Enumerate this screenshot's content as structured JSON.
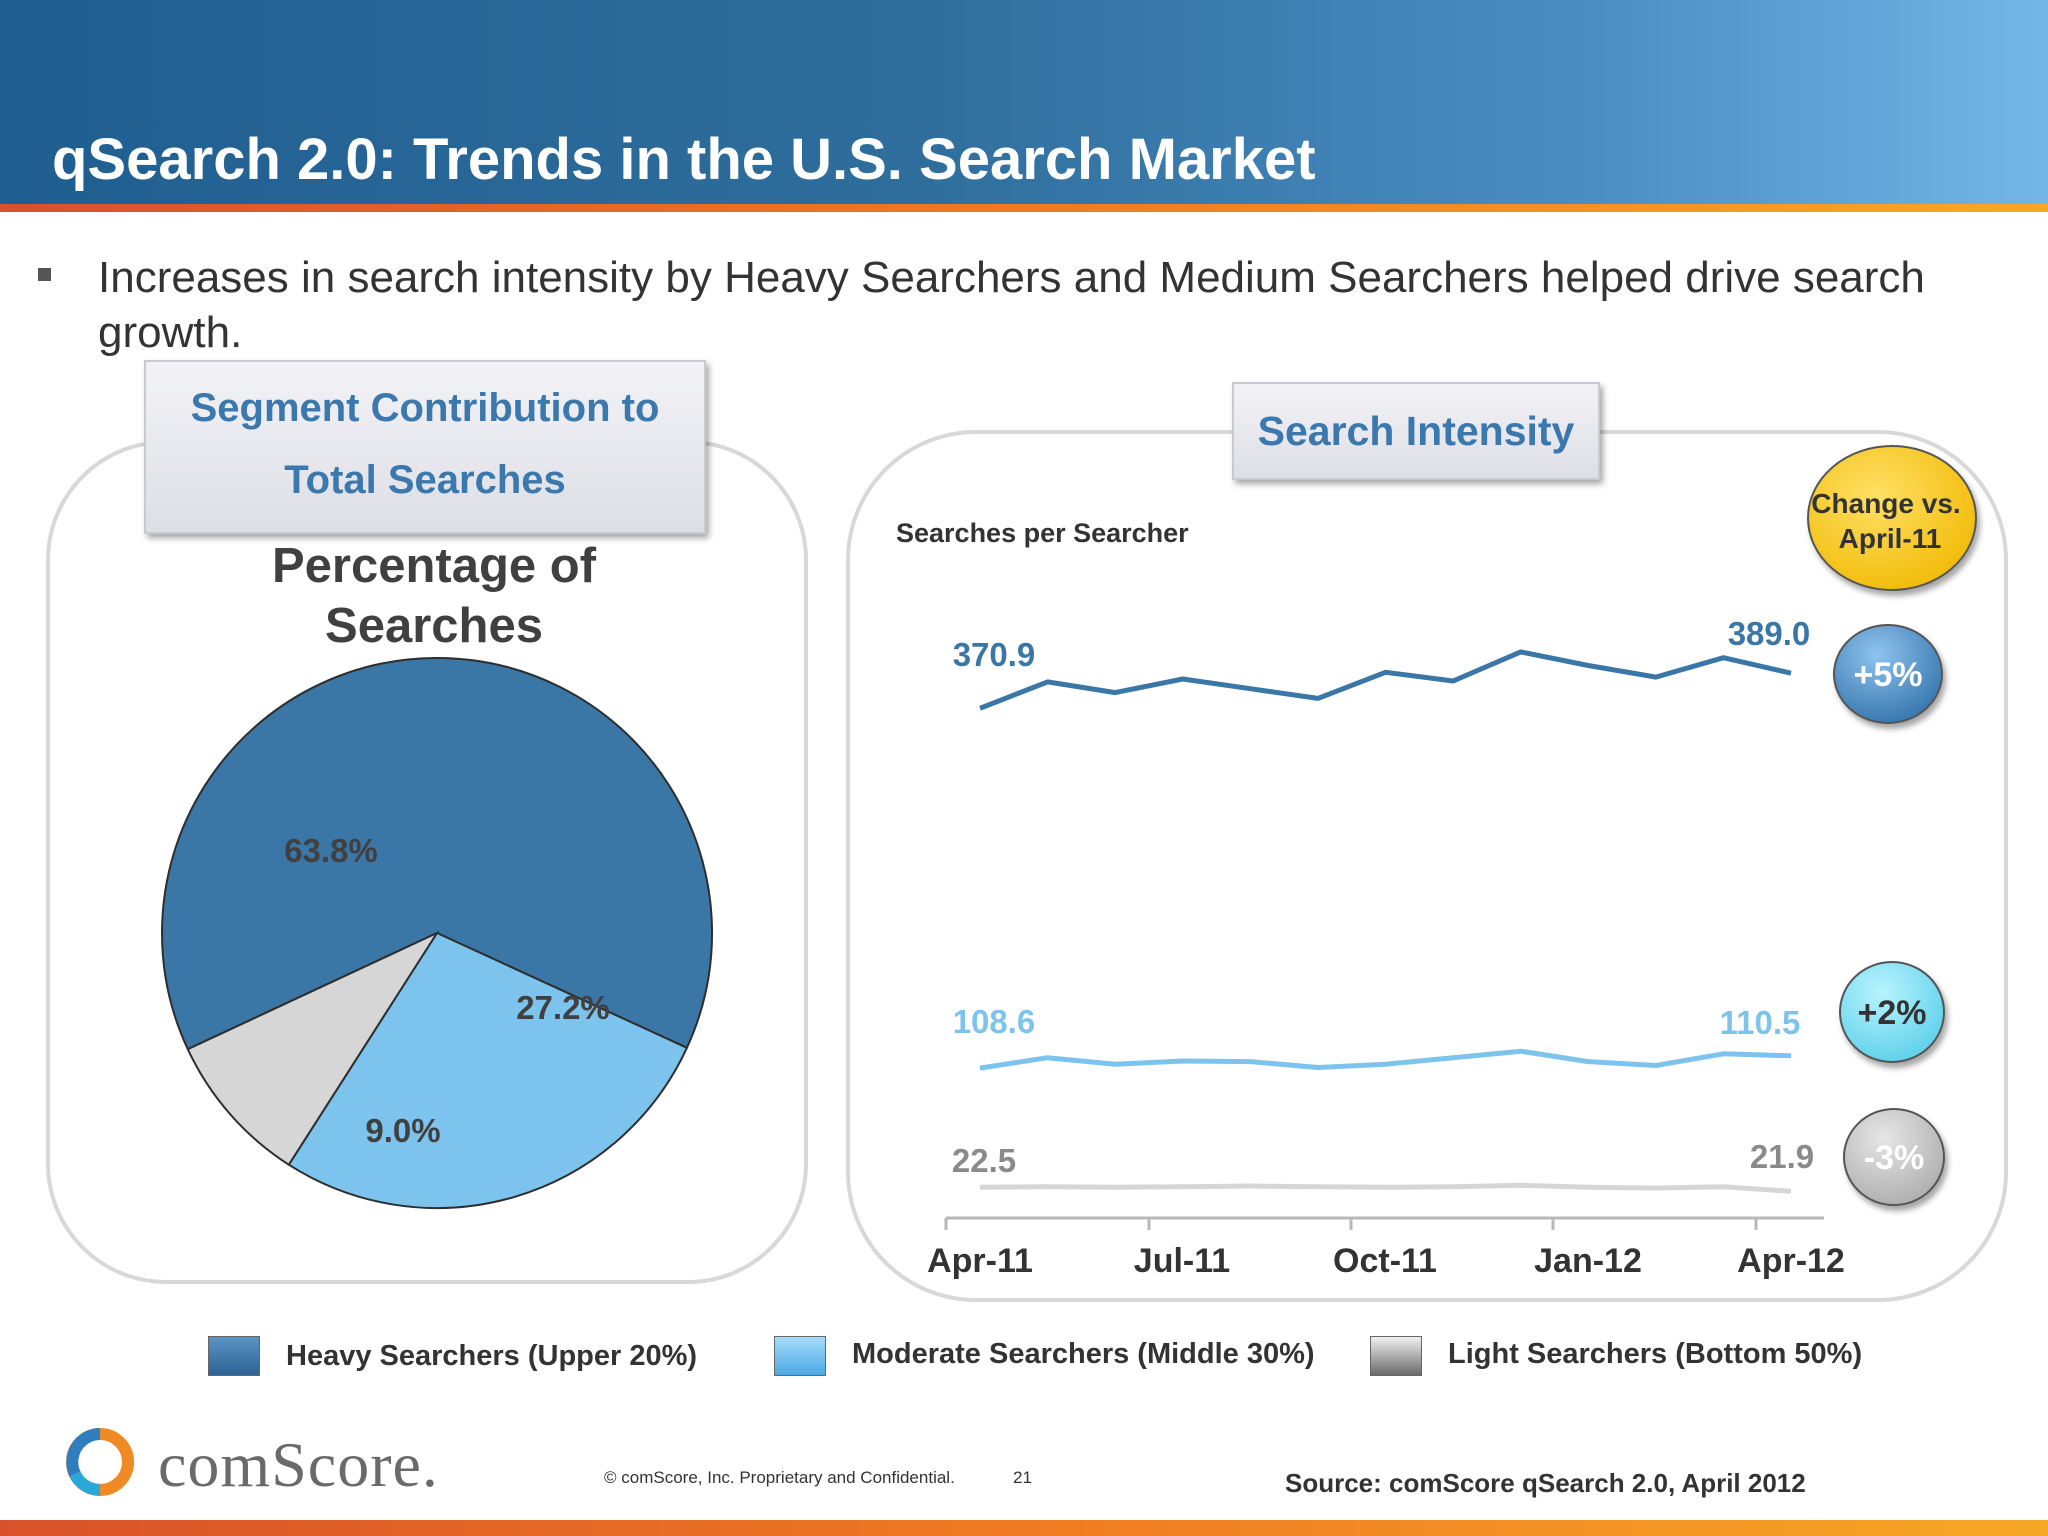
{
  "header": {
    "title": "qSearch 2.0: Trends in the U.S. Search Market"
  },
  "bullet": "Increases in search intensity by Heavy Searchers and Medium Searchers helped drive search growth.",
  "left_panel": {
    "tab_line1": "Segment Contribution to",
    "tab_line2": "Total Searches"
  },
  "right_panel": {
    "tab": "Search Intensity"
  },
  "colors": {
    "heavy": "#3a76a6",
    "moderate": "#7cc4ee",
    "light": "#d6d6d6",
    "highlight": "#ffcc00"
  },
  "chart_data": [
    {
      "type": "pie",
      "title_line1": "Percentage of",
      "title_line2": "Searches",
      "slices": [
        {
          "series": "Heavy Searchers",
          "value": 63.8,
          "label": "63.8%"
        },
        {
          "series": "Moderate Searchers",
          "value": 27.2,
          "label": "27.2%"
        },
        {
          "series": "Light Searchers",
          "value": 9.0,
          "label": "9.0%"
        }
      ]
    },
    {
      "type": "line",
      "ylabel": "Searches per Searcher",
      "x_ticks": [
        "Apr-11",
        "Jul-11",
        "Oct-11",
        "Jan-12",
        "Apr-12"
      ],
      "x": [
        "Apr-11",
        "May-11",
        "Jun-11",
        "Jul-11",
        "Aug-11",
        "Sep-11",
        "Oct-11",
        "Nov-11",
        "Dec-11",
        "Jan-12",
        "Feb-12",
        "Mar-12",
        "Apr-12"
      ],
      "series": [
        {
          "name": "Heavy Searchers",
          "values": [
            370.9,
            384.5,
            379.0,
            386.0,
            381.0,
            376.0,
            389.5,
            385.0,
            400.0,
            393.0,
            387.0,
            397.0,
            389.0
          ],
          "start_label": "370.9",
          "end_label": "389.0",
          "change": "+5%"
        },
        {
          "name": "Moderate Searchers",
          "values": [
            108.6,
            110.2,
            109.2,
            109.7,
            109.6,
            108.7,
            109.2,
            110.2,
            111.2,
            109.6,
            109.0,
            110.8,
            110.5
          ],
          "start_label": "108.6",
          "end_label": "110.5",
          "change": "+2%"
        },
        {
          "name": "Light Searchers",
          "values": [
            22.5,
            22.6,
            22.5,
            22.6,
            22.7,
            22.6,
            22.5,
            22.6,
            22.8,
            22.5,
            22.4,
            22.6,
            21.9
          ],
          "start_label": "22.5",
          "end_label": "21.9",
          "change": "-3%"
        }
      ],
      "change_header_line1": "Change vs.",
      "change_header_line2": "April-11"
    }
  ],
  "legend": [
    {
      "label": "Heavy Searchers (Upper 20%)"
    },
    {
      "label": "Moderate Searchers (Middle  30%)"
    },
    {
      "label": "Light Searchers (Bottom 50%)"
    }
  ],
  "footer": {
    "logo": "comScore.",
    "copyright": "© comScore, Inc.  Proprietary and Confidential.",
    "page": "21",
    "source": "Source: comScore qSearch 2.0, April 2012"
  }
}
